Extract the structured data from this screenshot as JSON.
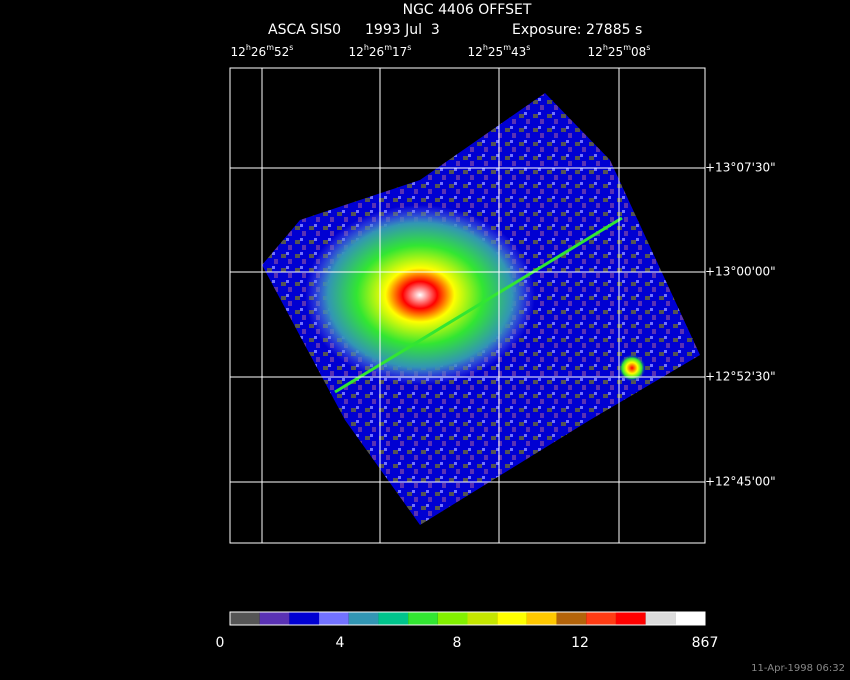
{
  "title": "NGC 4406 OFFSET",
  "subtitle": {
    "instrument": "ASCA SIS0",
    "date": "1993 Jul  3",
    "exposure": "Exposure: 27885 s"
  },
  "ra_labels": [
    [
      "12",
      "h",
      "26",
      "m",
      "52",
      "s"
    ],
    [
      "12",
      "h",
      "26",
      "m",
      "17",
      "s"
    ],
    [
      "12",
      "h",
      "25",
      "m",
      "43",
      "s"
    ],
    [
      "12",
      "h",
      "25",
      "m",
      "08",
      "s"
    ]
  ],
  "dec_labels": [
    "+13°07'30\"",
    "+13°00'00\"",
    "+12°52'30\"",
    "+12°45'00\""
  ],
  "colorbar": {
    "colors": [
      "#555555",
      "#5a32b4",
      "#0000d2",
      "#7272ff",
      "#3296b4",
      "#00c48c",
      "#32e632",
      "#82f000",
      "#c4e600",
      "#ffff00",
      "#ffc800",
      "#b4640a",
      "#ff3c14",
      "#ff0000",
      "#dcdcdc",
      "#ffffff"
    ],
    "labels": [
      "0",
      "4",
      "8",
      "12",
      "867"
    ]
  },
  "timestamp": "11-Apr-1998 06:32"
}
